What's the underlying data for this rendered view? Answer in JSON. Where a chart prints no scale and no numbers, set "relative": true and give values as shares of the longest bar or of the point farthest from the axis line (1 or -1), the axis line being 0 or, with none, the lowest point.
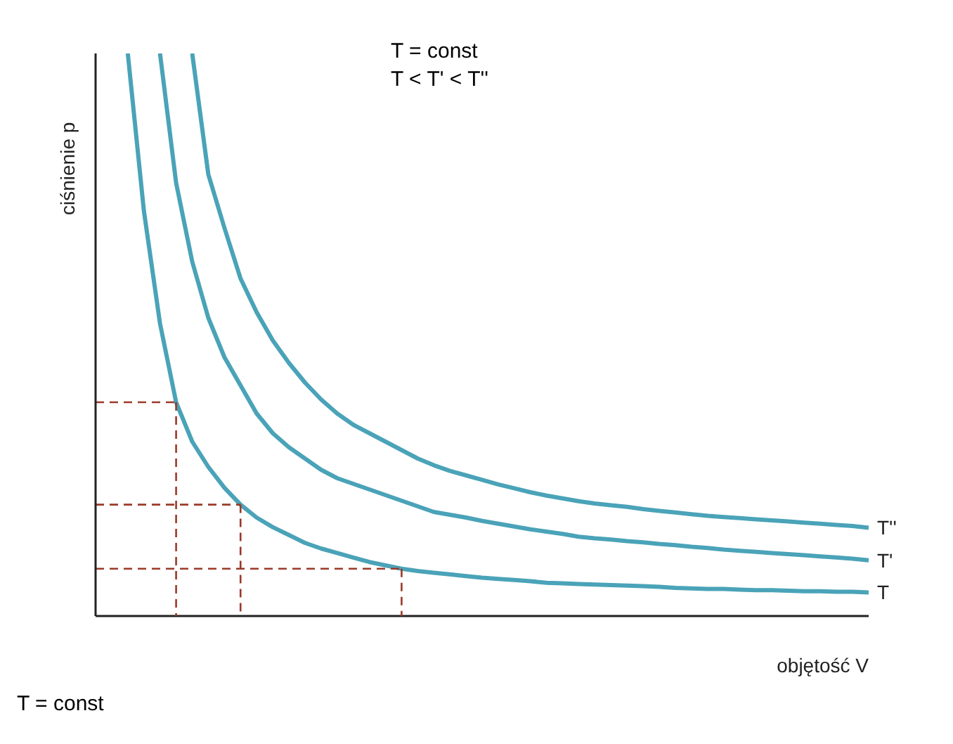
{
  "chart_data": {
    "type": "line",
    "relative": true,
    "xlabel": "objętość V",
    "ylabel": "ciśnienie p",
    "annotations": [
      "T = const",
      "T < T' < T''",
      "T = const"
    ],
    "grid": false,
    "legend": false,
    "marker": "none",
    "line_style": "solid",
    "categories": [
      null,
      null,
      null,
      null,
      null,
      null,
      null,
      null,
      null,
      null,
      null,
      null,
      null,
      null,
      null,
      null,
      null,
      null,
      null,
      null,
      null,
      null,
      null,
      null,
      null,
      null,
      null,
      null,
      null,
      null,
      null,
      null,
      null,
      null,
      null,
      null,
      null,
      null,
      null,
      null,
      null,
      null,
      null,
      null,
      null,
      null,
      null,
      null,
      null
    ],
    "series": [
      {
        "name": "T",
        "color": "#4aa3b8",
        "values": [
          null,
          null,
          1,
          0.72,
          0.52,
          0.38,
          0.31,
          0.265,
          0.228,
          0.198,
          0.175,
          0.158,
          0.144,
          0.13,
          0.12,
          0.112,
          0.104,
          0.096,
          0.09,
          0.084,
          0.08,
          0.077,
          0.074,
          0.071,
          0.068,
          0.066,
          0.064,
          0.062,
          0.059,
          0.058,
          0.057,
          0.056,
          0.055,
          0.054,
          0.053,
          0.052,
          0.05,
          0.049,
          0.048,
          0.048,
          0.047,
          0.046,
          0.046,
          0.045,
          0.044,
          0.044,
          0.043,
          0.043,
          0.042
        ]
      },
      {
        "name": "T'",
        "color": "#4aa3b8",
        "values": [
          null,
          null,
          null,
          null,
          1,
          0.77,
          0.63,
          0.53,
          0.46,
          0.41,
          0.36,
          0.325,
          0.3,
          0.28,
          0.26,
          0.245,
          0.235,
          0.225,
          0.215,
          0.205,
          0.195,
          0.185,
          0.18,
          0.175,
          0.169,
          0.164,
          0.159,
          0.154,
          0.15,
          0.146,
          0.141,
          0.138,
          0.136,
          0.133,
          0.131,
          0.128,
          0.126,
          0.123,
          0.121,
          0.118,
          0.116,
          0.114,
          0.112,
          0.11,
          0.108,
          0.106,
          0.104,
          0.102,
          0.099
        ]
      },
      {
        "name": "T''",
        "color": "#4aa3b8",
        "values": [
          null,
          null,
          null,
          null,
          null,
          null,
          1,
          0.785,
          0.69,
          0.6,
          0.54,
          0.49,
          0.45,
          0.415,
          0.385,
          0.36,
          0.34,
          0.325,
          0.31,
          0.295,
          0.28,
          0.268,
          0.258,
          0.25,
          0.242,
          0.234,
          0.227,
          0.22,
          0.214,
          0.209,
          0.204,
          0.2,
          0.197,
          0.194,
          0.19,
          0.187,
          0.184,
          0.181,
          0.178,
          0.176,
          0.174,
          0.172,
          0.17,
          0.168,
          0.166,
          0.164,
          0.162,
          0.16,
          0.157
        ]
      },
      {
        "color": "#9a3a2a",
        "line_style": "dashed",
        "values": [
          0.38,
          0.38,
          0.38,
          0.38,
          0.38,
          0.38,
          null,
          null,
          null,
          null,
          null,
          null,
          null,
          null,
          null,
          null,
          null,
          null,
          null,
          null,
          null,
          null,
          null,
          null,
          null,
          null,
          null,
          null,
          null,
          null,
          null,
          null,
          null,
          null,
          null,
          null,
          null,
          null,
          null,
          null,
          null,
          null,
          null,
          null,
          null,
          null,
          null,
          null,
          null
        ]
      },
      {
        "color": "#9a3a2a",
        "line_style": "dashed",
        "values": [
          0.198,
          0.198,
          0.198,
          0.198,
          0.198,
          0.198,
          0.198,
          0.198,
          0.198,
          0.198,
          null,
          null,
          null,
          null,
          null,
          null,
          null,
          null,
          null,
          null,
          null,
          null,
          null,
          null,
          null,
          null,
          null,
          null,
          null,
          null,
          null,
          null,
          null,
          null,
          null,
          null,
          null,
          null,
          null,
          null,
          null,
          null,
          null,
          null,
          null,
          null,
          null,
          null,
          null
        ]
      },
      {
        "color": "#9a3a2a",
        "line_style": "dashed",
        "values": [
          0.084,
          0.084,
          0.084,
          0.084,
          0.084,
          0.084,
          0.084,
          0.084,
          0.084,
          0.084,
          0.084,
          0.084,
          0.084,
          0.084,
          0.084,
          0.084,
          0.084,
          0.084,
          0.084,
          0.084,
          null,
          null,
          null,
          null,
          null,
          null,
          null,
          null,
          null,
          null,
          null,
          null,
          null,
          null,
          null,
          null,
          null,
          null,
          null,
          null,
          null,
          null,
          null,
          null,
          null,
          null,
          null,
          null,
          null
        ]
      }
    ]
  }
}
